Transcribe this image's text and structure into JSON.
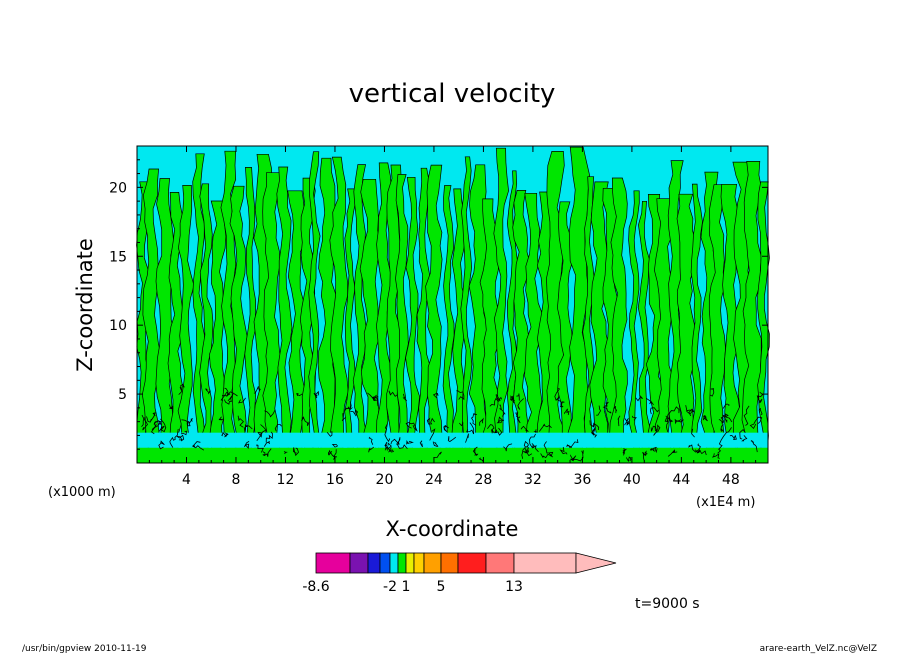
{
  "chart_data": {
    "type": "heatmap",
    "title": "vertical velocity",
    "xlabel": "X-coordinate",
    "ylabel": "Z-coordinate",
    "x_unit": "(x1E4 m)",
    "y_unit": "(x1000 m)",
    "xlim": [
      0,
      51
    ],
    "ylim": [
      0,
      23
    ],
    "x_ticks": [
      4,
      8,
      12,
      16,
      20,
      24,
      28,
      32,
      36,
      40,
      44,
      48
    ],
    "y_ticks": [
      5,
      10,
      15,
      20
    ],
    "field_colors": {
      "background_level": "#00e8f0",
      "updraft_level": "#00e600",
      "contour_line": "#000000"
    },
    "colorbar": {
      "tick_labels": [
        "-8.6",
        "-2",
        "1",
        "5",
        "13"
      ],
      "tick_level_index": [
        0,
        4,
        6,
        9,
        12
      ],
      "levels": [
        "#e6009c",
        "#7a12b0",
        "#1a1ad8",
        "#0050f0",
        "#00e8f0",
        "#00e600",
        "#e8f000",
        "#ffd000",
        "#ffa000",
        "#ff7000",
        "#ff1e1e",
        "#ff7878",
        "#ffbcbc"
      ],
      "extend": "max"
    },
    "time_label": "t=9000 s"
  },
  "footer": {
    "left": "/usr/bin/gpview   2010-11-19",
    "right": "arare-earth_VelZ.nc@VelZ"
  }
}
